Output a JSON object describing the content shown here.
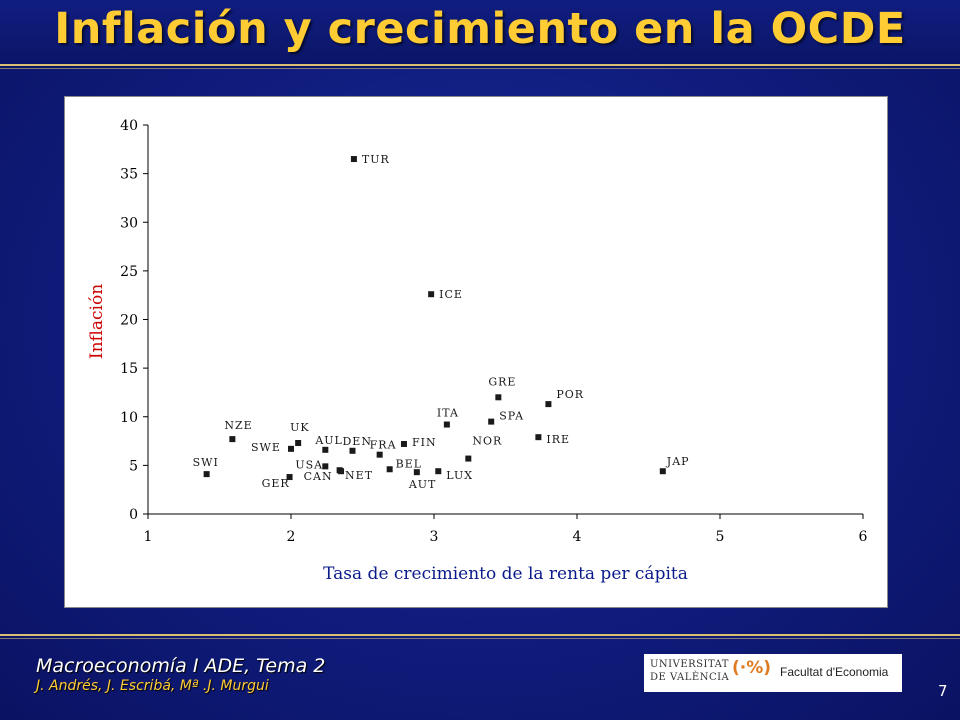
{
  "slide": {
    "title": "Inflación y crecimiento en la OCDE",
    "course": "Macroeconomía I ADE, Tema 2",
    "authors": "J. Andrés, J. Escribá, Mª .J. Murgui",
    "page_number": "7",
    "logo": {
      "university_line1": "UNIVERSITAT",
      "university_line2": "DE VALÈNCIA",
      "mark": "(·%)",
      "faculty": "Facultat d'Economia"
    }
  },
  "colors": {
    "background": "#0f1c7c",
    "title": "#ffcc33",
    "ylabel": "#cc0000",
    "marker": "#1a1a1a"
  },
  "chart_data": {
    "type": "scatter",
    "xlabel": "Tasa de crecimiento de la renta per cápita",
    "ylabel": "Inflación",
    "xlim": [
      1,
      6
    ],
    "ylim": [
      0,
      40
    ],
    "xticks": [
      1,
      2,
      3,
      4,
      5,
      6
    ],
    "yticks": [
      0,
      5,
      10,
      15,
      20,
      25,
      30,
      35,
      40
    ],
    "grid": false,
    "points": [
      {
        "label": "TUR",
        "x": 2.44,
        "y": 36.5
      },
      {
        "label": "ICE",
        "x": 2.98,
        "y": 22.6
      },
      {
        "label": "GRE",
        "x": 3.45,
        "y": 12.0
      },
      {
        "label": "POR",
        "x": 3.8,
        "y": 11.3
      },
      {
        "label": "SPA",
        "x": 3.4,
        "y": 9.5
      },
      {
        "label": "ITA",
        "x": 3.09,
        "y": 9.2
      },
      {
        "label": "IRE",
        "x": 3.73,
        "y": 7.9
      },
      {
        "label": "NZE",
        "x": 1.59,
        "y": 7.7
      },
      {
        "label": "UK",
        "x": 2.05,
        "y": 7.3
      },
      {
        "label": "FIN",
        "x": 2.79,
        "y": 7.2
      },
      {
        "label": "SWE",
        "x": 2.0,
        "y": 6.7
      },
      {
        "label": "AUL",
        "x": 2.24,
        "y": 6.6
      },
      {
        "label": "DEN",
        "x": 2.43,
        "y": 6.5
      },
      {
        "label": "FRA",
        "x": 2.62,
        "y": 6.1
      },
      {
        "label": "NOR",
        "x": 3.24,
        "y": 5.7
      },
      {
        "label": "USA",
        "x": 2.24,
        "y": 4.9
      },
      {
        "label": "CAN",
        "x": 2.34,
        "y": 4.5
      },
      {
        "label": "NET",
        "x": 2.35,
        "y": 4.4
      },
      {
        "label": "BEL",
        "x": 2.69,
        "y": 4.6
      },
      {
        "label": "AUT",
        "x": 2.88,
        "y": 4.3
      },
      {
        "label": "LUX",
        "x": 3.03,
        "y": 4.4
      },
      {
        "label": "JAP",
        "x": 4.6,
        "y": 4.4
      },
      {
        "label": "SWI",
        "x": 1.41,
        "y": 4.1
      },
      {
        "label": "GER",
        "x": 1.99,
        "y": 3.8
      }
    ]
  }
}
